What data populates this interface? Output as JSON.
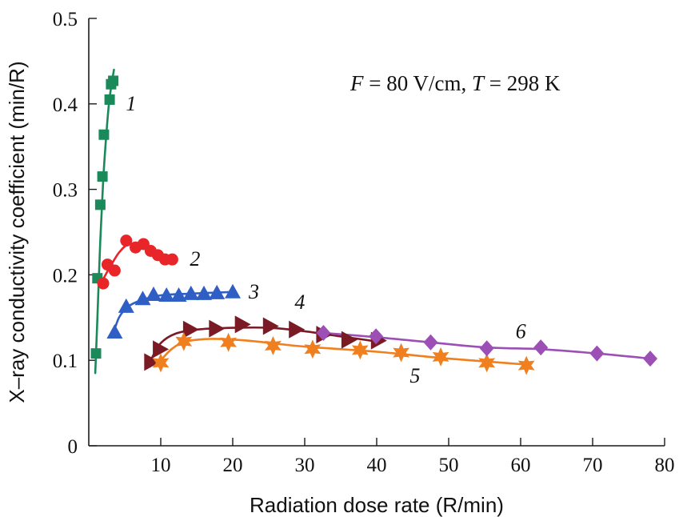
{
  "chart_data": {
    "type": "scatter",
    "title": "",
    "xlabel": "Radiation dose rate (R/min)",
    "ylabel": "X–ray conductivity coefficient (min/R)",
    "xlim": [
      0,
      80
    ],
    "ylim": [
      0,
      0.5
    ],
    "grid": false,
    "legend": "none",
    "x_ticks": [
      10,
      20,
      30,
      40,
      50,
      60,
      70,
      80
    ],
    "x_tick_labels": [
      "10",
      "20",
      "30",
      "40",
      "50",
      "60",
      "70",
      "80"
    ],
    "y_ticks": [
      0,
      0.1,
      0.2,
      0.3,
      0.4,
      0.5
    ],
    "y_tick_labels": [
      "0",
      "0.1",
      "0.2",
      "0.3",
      "0.4",
      "0.5"
    ],
    "annotation": {
      "var1": "F",
      "eq1": " = 80 V/cm, ",
      "var2": "T",
      "eq2": " = 298 K"
    },
    "series": [
      {
        "label": "1",
        "color": "#1b8a5a",
        "marker": "square",
        "points": [
          [
            1.0,
            0.108
          ],
          [
            1.2,
            0.196
          ],
          [
            1.6,
            0.282
          ],
          [
            1.9,
            0.315
          ],
          [
            2.1,
            0.364
          ],
          [
            2.9,
            0.405
          ],
          [
            3.1,
            0.423
          ],
          [
            3.4,
            0.427
          ]
        ],
        "curve": [
          [
            0.9,
            0.085
          ],
          [
            1.2,
            0.15
          ],
          [
            1.6,
            0.24
          ],
          [
            2.0,
            0.31
          ],
          [
            2.4,
            0.36
          ],
          [
            2.8,
            0.4
          ],
          [
            3.2,
            0.425
          ],
          [
            3.5,
            0.44
          ]
        ]
      },
      {
        "label": "2",
        "color": "#e8262a",
        "marker": "circle",
        "points": [
          [
            2.0,
            0.19
          ],
          [
            2.6,
            0.212
          ],
          [
            3.6,
            0.205
          ],
          [
            5.2,
            0.24
          ],
          [
            6.5,
            0.232
          ],
          [
            7.6,
            0.236
          ],
          [
            8.6,
            0.228
          ],
          [
            9.6,
            0.223
          ],
          [
            10.6,
            0.218
          ],
          [
            11.6,
            0.218
          ]
        ],
        "curve": [
          [
            2.0,
            0.195
          ],
          [
            3.0,
            0.21
          ],
          [
            4.2,
            0.226
          ],
          [
            5.5,
            0.236
          ],
          [
            7.0,
            0.235
          ],
          [
            8.5,
            0.228
          ],
          [
            10.0,
            0.221
          ],
          [
            11.6,
            0.217
          ]
        ]
      },
      {
        "label": "3",
        "color": "#2f5fc4",
        "marker": "triangle-up",
        "points": [
          [
            3.6,
            0.133
          ],
          [
            5.2,
            0.163
          ],
          [
            7.5,
            0.172
          ],
          [
            9.0,
            0.177
          ],
          [
            10.8,
            0.176
          ],
          [
            12.5,
            0.176
          ],
          [
            14.2,
            0.178
          ],
          [
            16.0,
            0.178
          ],
          [
            17.8,
            0.179
          ],
          [
            20.0,
            0.18
          ]
        ],
        "curve": [
          [
            3.3,
            0.128
          ],
          [
            4.2,
            0.15
          ],
          [
            5.5,
            0.163
          ],
          [
            7.5,
            0.171
          ],
          [
            10.0,
            0.176
          ],
          [
            14.0,
            0.178
          ],
          [
            20.0,
            0.18
          ]
        ]
      },
      {
        "label": "4",
        "color": "#7a1a24",
        "marker": "triangle-right",
        "points": [
          [
            8.7,
            0.098
          ],
          [
            9.9,
            0.113
          ],
          [
            14.1,
            0.136
          ],
          [
            17.7,
            0.137
          ],
          [
            21.3,
            0.142
          ],
          [
            25.2,
            0.14
          ],
          [
            28.8,
            0.136
          ],
          [
            32.6,
            0.13
          ],
          [
            36.1,
            0.124
          ],
          [
            40.2,
            0.123
          ]
        ],
        "curve": [
          [
            8.6,
            0.1
          ],
          [
            10.0,
            0.12
          ],
          [
            12.0,
            0.131
          ],
          [
            15.0,
            0.136
          ],
          [
            20.0,
            0.138
          ],
          [
            25.0,
            0.138
          ],
          [
            30.0,
            0.134
          ],
          [
            35.0,
            0.128
          ],
          [
            40.0,
            0.122
          ]
        ]
      },
      {
        "label": "5",
        "color": "#f07f1f",
        "marker": "star",
        "points": [
          [
            10.0,
            0.097
          ],
          [
            13.2,
            0.122
          ],
          [
            19.4,
            0.121
          ],
          [
            25.6,
            0.117
          ],
          [
            31.1,
            0.113
          ],
          [
            37.7,
            0.112
          ],
          [
            43.4,
            0.109
          ],
          [
            48.9,
            0.104
          ],
          [
            55.3,
            0.097
          ],
          [
            60.8,
            0.094
          ]
        ],
        "curve": [
          [
            9.7,
            0.097
          ],
          [
            11.5,
            0.113
          ],
          [
            13.5,
            0.122
          ],
          [
            17.0,
            0.125
          ],
          [
            22.0,
            0.123
          ],
          [
            30.0,
            0.116
          ],
          [
            40.0,
            0.11
          ],
          [
            50.0,
            0.102
          ],
          [
            60.8,
            0.095
          ]
        ]
      },
      {
        "label": "6",
        "color": "#9c4fb4",
        "marker": "diamond",
        "points": [
          [
            32.6,
            0.132
          ],
          [
            39.9,
            0.128
          ],
          [
            47.5,
            0.121
          ],
          [
            55.3,
            0.114
          ],
          [
            62.8,
            0.115
          ],
          [
            70.6,
            0.108
          ],
          [
            78.0,
            0.102
          ]
        ],
        "curve": [
          [
            32.6,
            0.132
          ],
          [
            40.0,
            0.127
          ],
          [
            47.5,
            0.121
          ],
          [
            55.3,
            0.115
          ],
          [
            62.8,
            0.113
          ],
          [
            70.6,
            0.108
          ],
          [
            78.0,
            0.102
          ]
        ]
      }
    ]
  }
}
